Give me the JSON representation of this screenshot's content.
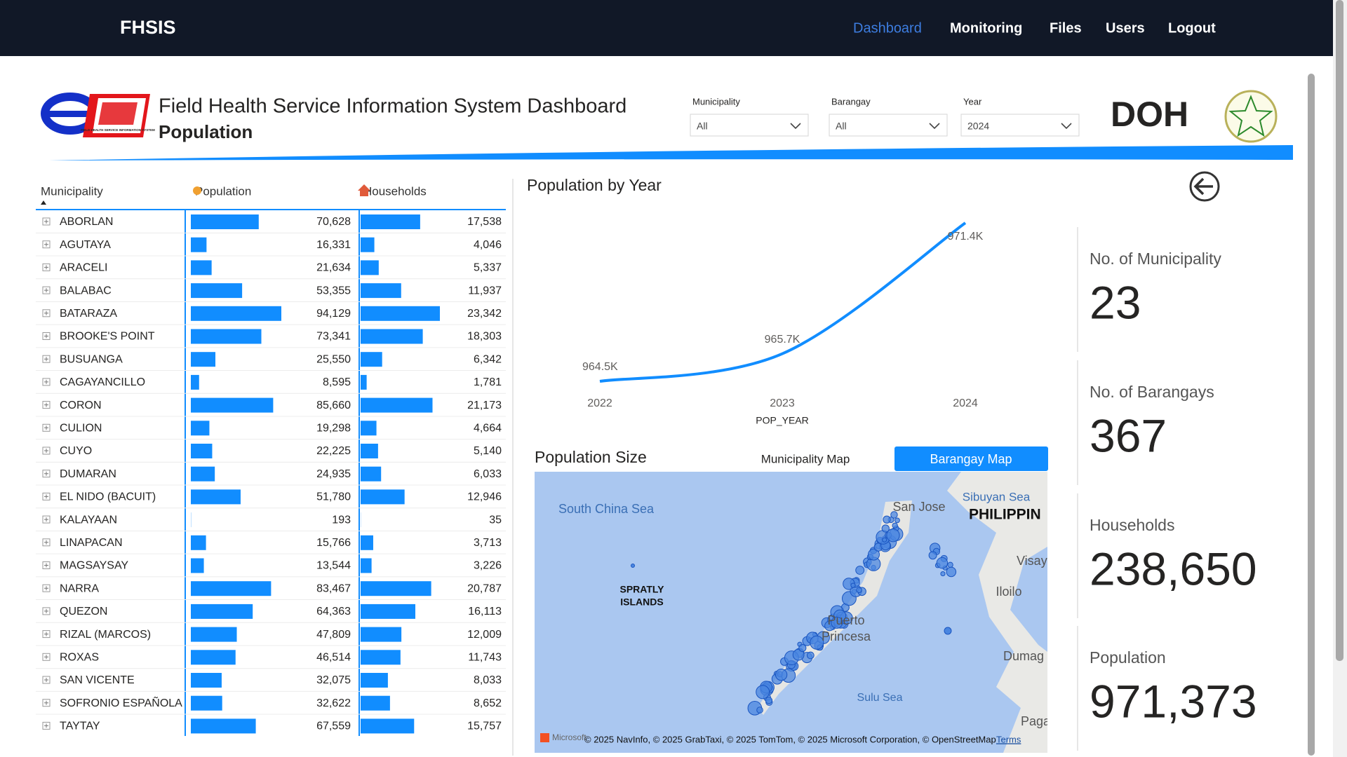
{
  "nav": {
    "brand": "FHSIS",
    "links": [
      "Dashboard",
      "Monitoring",
      "Files",
      "Users",
      "Logout"
    ]
  },
  "header": {
    "logo_caption": "FIELD HEALTH SERVICE INFORMATION SYSTEM",
    "title": "Field Health Service Information System Dashboard",
    "subtitle": "Population",
    "doh_logo": "DOH"
  },
  "filters": [
    {
      "label": "Municipality",
      "value": "All"
    },
    {
      "label": "Barangay",
      "value": "All"
    },
    {
      "label": "Year",
      "value": "2024"
    }
  ],
  "table": {
    "columns": [
      "Municipality",
      "Population",
      "Households"
    ],
    "municipalities": [
      "ABORLAN",
      "AGUTAYA",
      "ARACELI",
      "BALABAC",
      "BATARAZA",
      "BROOKE'S POINT",
      "BUSUANGA",
      "CAGAYANCILLO",
      "CORON",
      "CULION",
      "CUYO",
      "DUMARAN",
      "EL NIDO (BACUIT)",
      "KALAYAAN",
      "LINAPACAN",
      "MAGSAYSAY",
      "NARRA",
      "QUEZON",
      "RIZAL (MARCOS)",
      "ROXAS",
      "SAN VICENTE",
      "SOFRONIO ESPAÑOLA",
      "TAYTAY"
    ],
    "population": {
      "values": [
        70628,
        16331,
        21634,
        53355,
        94129,
        73341,
        25550,
        8595,
        85660,
        19298,
        22225,
        24935,
        51780,
        193,
        15766,
        13544,
        83467,
        64363,
        47809,
        46514,
        32075,
        32622,
        67559
      ],
      "value_labels": [
        "70,628",
        "16,331",
        "21,634",
        "53,355",
        "94,129",
        "73,341",
        "25,550",
        "8,595",
        "85,660",
        "19,298",
        "22,225",
        "24,935",
        "51,780",
        "193",
        "15,766",
        "13,544",
        "83,467",
        "64,363",
        "47,809",
        "46,514",
        "32,075",
        "32,622",
        "67,559"
      ],
      "color": "#118dff"
    },
    "households": {
      "values": [
        17538,
        4046,
        5337,
        11937,
        23342,
        18303,
        6342,
        1781,
        21173,
        4664,
        5140,
        6033,
        12946,
        35,
        3713,
        3226,
        20787,
        16113,
        12009,
        11743,
        8033,
        8652,
        15757
      ],
      "value_labels": [
        "17,538",
        "4,046",
        "5,337",
        "11,937",
        "23,342",
        "18,303",
        "6,342",
        "1,781",
        "21,173",
        "4,664",
        "5,140",
        "6,033",
        "12,946",
        "35",
        "3,713",
        "3,226",
        "20,787",
        "16,113",
        "12,009",
        "11,743",
        "8,033",
        "8,652",
        "15,757"
      ],
      "color": "#118dff"
    }
  },
  "chart_data": {
    "type": "line",
    "title": "Population by Year",
    "x_label": "POP_YEAR",
    "categories": [
      "2022",
      "2023",
      "2024"
    ],
    "values": [
      964500,
      965700,
      971400
    ],
    "value_labels": [
      "964.5K",
      "965.7K",
      "971.4K"
    ],
    "color": "#118dff"
  },
  "map": {
    "title": "Population Size",
    "tabs": [
      "Municipality Map",
      "Barangay Map"
    ],
    "labels": [
      "South China Sea",
      "Sibuyan Sea",
      "San Jose",
      "PHILIPPIN",
      "Visay",
      "Iloilo",
      "SPRATLY",
      "ISLANDS",
      "Puerto",
      "Princesa",
      "Sulu Sea",
      "Dumag",
      "Paga"
    ],
    "attribution_brand": "Microsoft",
    "attribution": "© 2025 NavInfo, © 2025 GrabTaxi, © 2025 TomTom, © 2025 Microsoft Corporation, © OpenStreetMap",
    "terms": "Terms"
  },
  "kpis": [
    {
      "label": "No. of Municipality",
      "value": "23"
    },
    {
      "label": "No. of Barangays",
      "value": "367"
    },
    {
      "label": "Households",
      "value": "238,650"
    },
    {
      "label": "Population",
      "value": "971,373"
    }
  ]
}
